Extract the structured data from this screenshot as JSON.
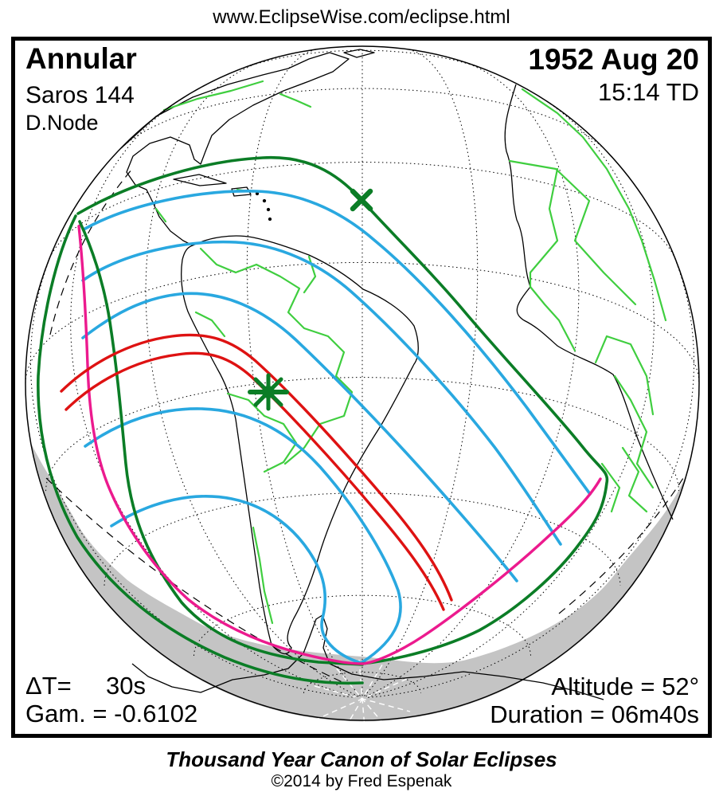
{
  "page": {
    "url": "www.EclipseWise.com/eclipse.html"
  },
  "eclipse": {
    "type": "Annular",
    "saros": "Saros 144",
    "node": "D.Node",
    "date": "1952 Aug 20",
    "time": "15:14 TD"
  },
  "stats": {
    "delta_t_label": "ΔT=",
    "delta_t_value": "30s",
    "gamma": "Gam. = -0.6102",
    "altitude": "Altitude = 52°",
    "duration": "Duration = 06m40s"
  },
  "footer": {
    "title": "Thousand Year Canon of Solar Eclipses",
    "copyright": "©2014 by Fred Espenak"
  },
  "colors": {
    "background": "#FFFFFF",
    "frame": "#000000",
    "graticule": "#000000",
    "coastline": "#000000",
    "country_border": "#3FCE3F",
    "penumbra_limit_green": "#0B7D26",
    "magnitude_curve_blue": "#29A8E0",
    "annular_path_red": "#DE1212",
    "sunrise_sunset_magenta": "#EC1A8E",
    "night_shading_gray": "#C4C4C4",
    "marker_green": "#0B7D26",
    "pole_ray_white": "#FFFFFF"
  }
}
